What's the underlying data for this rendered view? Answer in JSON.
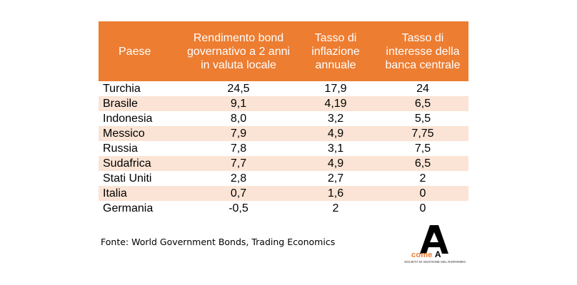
{
  "table": {
    "headers": [
      "Paese",
      "Rendimento bond governativo a 2 anni in valuta locale",
      "Tasso di inflazione annuale",
      "Tasso di interesse della banca centrale"
    ],
    "rows": [
      {
        "country": "Turchia",
        "bond": "24,5",
        "inflation": "17,9",
        "rate": "24"
      },
      {
        "country": "Brasile",
        "bond": "9,1",
        "inflation": "4,19",
        "rate": "6,5"
      },
      {
        "country": "Indonesia",
        "bond": "8,0",
        "inflation": "3,2",
        "rate": "5,5"
      },
      {
        "country": "Messico",
        "bond": "7,9",
        "inflation": "4,9",
        "rate": "7,75"
      },
      {
        "country": "Russia",
        "bond": "7,8",
        "inflation": "3,1",
        "rate": "7,5"
      },
      {
        "country": "Sudafrica",
        "bond": "7,7",
        "inflation": "4,9",
        "rate": "6,5"
      },
      {
        "country": "Stati Uniti",
        "bond": "2,8",
        "inflation": "2,7",
        "rate": "2"
      },
      {
        "country": "Italia",
        "bond": "0,7",
        "inflation": "1,6",
        "rate": "0"
      },
      {
        "country": "Germania",
        "bond": "-0,5",
        "inflation": "2",
        "rate": "0"
      }
    ]
  },
  "source": "Fonte: World Government Bonds, Trading Economics",
  "logo": {
    "word_lower": "come",
    "word_cap": "A",
    "tagline": "SOCIETÀ DI GESTIONE DEL RISPARMIO"
  },
  "colors": {
    "header_bg": "#ed7d31",
    "row_shade": "#fbe4d5"
  }
}
